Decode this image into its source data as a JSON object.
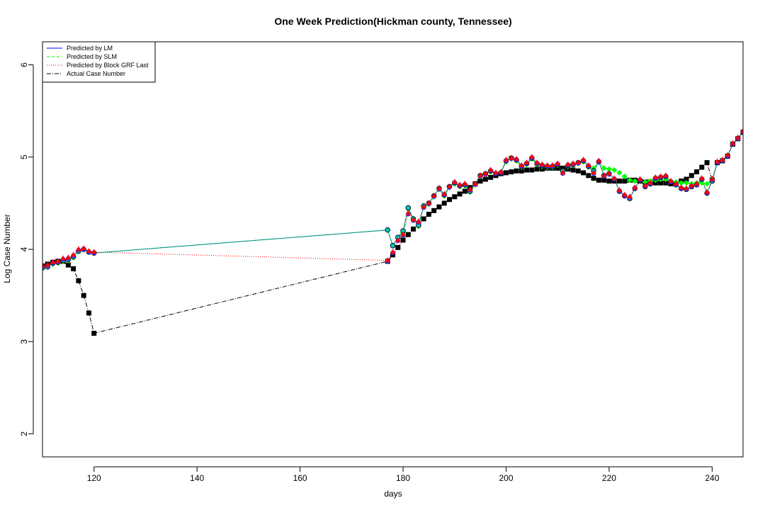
{
  "chart_data": {
    "type": "line",
    "title": "One Week Prediction(Hickman county, Tennessee)",
    "xlabel": "days",
    "ylabel": "Log Case Number",
    "xlim": [
      110,
      246
    ],
    "ylim": [
      1.75,
      6.25
    ],
    "xticks": [
      120,
      140,
      160,
      180,
      200,
      220,
      240
    ],
    "yticks": [
      2,
      3,
      4,
      5,
      6
    ],
    "grid": false,
    "legend_position": "top-left",
    "colors": {
      "lm": "#0000ff",
      "slm": "#00ff00",
      "grf": "#ff0000",
      "actual": "#000000",
      "connector": "#008b8b"
    },
    "legend": [
      {
        "key": "lm",
        "label": "Predicted by LM"
      },
      {
        "key": "slm",
        "label": "Predicted by SLM"
      },
      {
        "key": "grf",
        "label": "Predicted by Block GRF Last"
      },
      {
        "key": "actual",
        "label": "Actual Case Number"
      }
    ],
    "series": [
      {
        "key": "lm",
        "name": "Predicted by LM",
        "x": [
          110,
          111,
          112,
          113,
          114,
          115,
          116,
          117,
          118,
          119,
          120,
          177,
          178,
          179,
          180,
          181,
          182,
          183,
          184,
          185,
          186,
          187,
          188,
          189,
          190,
          191,
          192,
          193,
          194,
          195,
          196,
          197,
          198,
          199,
          200,
          201,
          202,
          203,
          204,
          205,
          206,
          207,
          208,
          209,
          210,
          211,
          212,
          213,
          214,
          215,
          216,
          217,
          218,
          219,
          220,
          221,
          222,
          223,
          224,
          225,
          226,
          227,
          228,
          229,
          230,
          231,
          232,
          233,
          234,
          235,
          236,
          237,
          238,
          239,
          240,
          241,
          242,
          243,
          244,
          245,
          246
        ],
        "y": [
          3.8,
          3.81,
          3.85,
          3.86,
          3.88,
          3.89,
          3.92,
          3.98,
          4.0,
          3.97,
          3.96,
          4.21,
          4.04,
          4.13,
          4.2,
          4.45,
          4.33,
          4.26,
          4.47,
          4.5,
          4.58,
          4.66,
          4.59,
          4.68,
          4.72,
          4.69,
          4.7,
          4.63,
          4.71,
          4.8,
          4.82,
          4.85,
          4.82,
          4.83,
          4.96,
          4.99,
          4.97,
          4.9,
          4.93,
          4.99,
          4.93,
          4.91,
          4.9,
          4.9,
          4.92,
          4.85,
          4.91,
          4.92,
          4.94,
          4.96,
          4.9,
          4.85,
          4.95,
          4.8,
          4.82,
          4.76,
          4.63,
          4.58,
          4.55,
          4.66,
          4.75,
          4.68,
          4.71,
          4.77,
          4.78,
          4.79,
          4.73,
          4.7,
          4.66,
          4.65,
          4.68,
          4.7,
          4.76,
          4.61,
          4.74,
          4.94,
          4.96,
          5.01,
          5.14,
          5.2,
          5.27
        ]
      },
      {
        "key": "slm",
        "name": "Predicted by SLM",
        "x": [
          110,
          111,
          112,
          113,
          114,
          115,
          116,
          117,
          118,
          119,
          120,
          177,
          178,
          179,
          180,
          181,
          182,
          183,
          184,
          185,
          186,
          187,
          188,
          189,
          190,
          191,
          192,
          193,
          194,
          195,
          196,
          197,
          198,
          199,
          200,
          201,
          202,
          203,
          204,
          205,
          206,
          207,
          208,
          209,
          210,
          211,
          212,
          213,
          214,
          215,
          216,
          217,
          218,
          219,
          220,
          221,
          222,
          223,
          224,
          225,
          226,
          227,
          228,
          229,
          230,
          231,
          232,
          233,
          234,
          235,
          236,
          237,
          238,
          239,
          240,
          241,
          242,
          243,
          244,
          245,
          246
        ],
        "y": [
          3.8,
          3.81,
          3.84,
          3.85,
          3.87,
          3.88,
          3.91,
          3.98,
          4.0,
          3.97,
          3.96,
          4.21,
          4.04,
          4.12,
          4.18,
          4.44,
          4.32,
          4.25,
          4.46,
          4.49,
          4.57,
          4.65,
          4.58,
          4.67,
          4.71,
          4.68,
          4.69,
          4.62,
          4.7,
          4.79,
          4.81,
          4.84,
          4.82,
          4.83,
          4.95,
          4.98,
          4.96,
          4.89,
          4.92,
          4.98,
          4.92,
          4.9,
          4.89,
          4.89,
          4.91,
          4.84,
          4.9,
          4.91,
          4.93,
          4.95,
          4.89,
          4.88,
          4.95,
          4.88,
          4.87,
          4.86,
          4.83,
          4.79,
          4.75,
          4.74,
          4.75,
          4.73,
          4.74,
          4.75,
          4.76,
          4.76,
          4.74,
          4.73,
          4.72,
          4.72,
          4.71,
          4.72,
          4.72,
          4.71,
          4.75,
          4.94,
          4.96,
          5.01,
          5.14,
          5.2,
          5.27
        ]
      },
      {
        "key": "grf",
        "name": "Predicted by Block GRF Last",
        "x": [
          110,
          111,
          112,
          113,
          114,
          115,
          116,
          117,
          118,
          119,
          120,
          177,
          178,
          179,
          180,
          181,
          182,
          183,
          184,
          185,
          186,
          187,
          188,
          189,
          190,
          191,
          192,
          193,
          194,
          195,
          196,
          197,
          198,
          199,
          200,
          201,
          202,
          203,
          204,
          205,
          206,
          207,
          208,
          209,
          210,
          211,
          212,
          213,
          214,
          215,
          216,
          217,
          218,
          219,
          220,
          221,
          222,
          223,
          224,
          225,
          226,
          227,
          228,
          229,
          230,
          231,
          232,
          233,
          234,
          235,
          236,
          237,
          238,
          239,
          240,
          241,
          242,
          243,
          244,
          245,
          246
        ],
        "y": [
          3.82,
          3.83,
          3.86,
          3.87,
          3.9,
          3.91,
          3.94,
          4.0,
          4.01,
          3.98,
          3.97,
          3.88,
          3.97,
          4.1,
          4.16,
          4.39,
          4.32,
          4.3,
          4.46,
          4.5,
          4.58,
          4.66,
          4.6,
          4.68,
          4.73,
          4.7,
          4.71,
          4.65,
          4.71,
          4.8,
          4.82,
          4.86,
          4.83,
          4.84,
          4.97,
          4.99,
          4.98,
          4.91,
          4.94,
          5.0,
          4.94,
          4.92,
          4.91,
          4.91,
          4.93,
          4.83,
          4.92,
          4.93,
          4.94,
          4.97,
          4.91,
          4.83,
          4.96,
          4.8,
          4.82,
          4.77,
          4.64,
          4.59,
          4.57,
          4.67,
          4.76,
          4.69,
          4.72,
          4.78,
          4.79,
          4.8,
          4.74,
          4.71,
          4.67,
          4.66,
          4.69,
          4.71,
          4.77,
          4.62,
          4.76,
          4.95,
          4.97,
          5.02,
          5.15,
          5.21,
          5.28
        ]
      },
      {
        "key": "actual",
        "name": "Actual Case Number",
        "x": [
          110,
          111,
          112,
          113,
          114,
          115,
          116,
          117,
          118,
          119,
          120,
          177,
          178,
          179,
          180,
          181,
          182,
          183,
          184,
          185,
          186,
          187,
          188,
          189,
          190,
          191,
          192,
          193,
          194,
          195,
          196,
          197,
          198,
          199,
          200,
          201,
          202,
          203,
          204,
          205,
          206,
          207,
          208,
          209,
          210,
          211,
          212,
          213,
          214,
          215,
          216,
          217,
          218,
          219,
          220,
          221,
          222,
          223,
          224,
          225,
          226,
          227,
          228,
          229,
          230,
          231,
          232,
          233,
          234,
          235,
          236,
          237,
          238,
          239,
          240,
          241,
          242,
          243,
          244,
          245,
          246
        ],
        "y": [
          3.82,
          3.84,
          3.86,
          3.87,
          3.87,
          3.83,
          3.79,
          3.66,
          3.5,
          3.31,
          3.09,
          3.87,
          3.94,
          4.02,
          4.1,
          4.16,
          4.22,
          4.28,
          4.33,
          4.38,
          4.42,
          4.46,
          4.5,
          4.54,
          4.57,
          4.6,
          4.63,
          4.67,
          4.71,
          4.74,
          4.76,
          4.78,
          4.8,
          4.82,
          4.83,
          4.84,
          4.85,
          4.85,
          4.86,
          4.86,
          4.87,
          4.87,
          4.88,
          4.88,
          4.88,
          4.88,
          4.87,
          4.86,
          4.85,
          4.83,
          4.8,
          4.77,
          4.75,
          4.75,
          4.74,
          4.74,
          4.74,
          4.74,
          4.75,
          4.75,
          4.74,
          4.73,
          4.73,
          4.72,
          4.72,
          4.72,
          4.71,
          4.71,
          4.74,
          4.76,
          4.8,
          4.84,
          4.89,
          4.94,
          4.75,
          4.94,
          4.96,
          5.01,
          5.14,
          5.2,
          5.27
        ]
      }
    ]
  }
}
